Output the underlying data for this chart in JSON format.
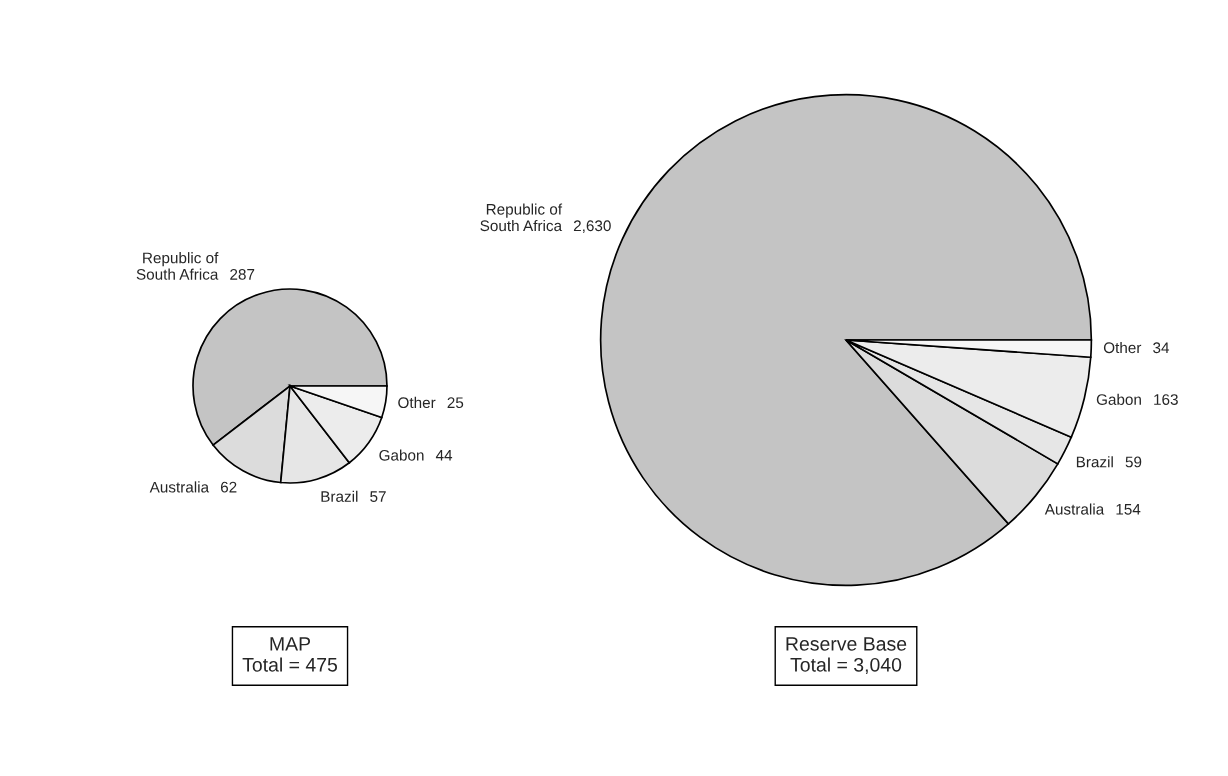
{
  "chart_data": [
    {
      "type": "pie",
      "title": "MAP",
      "subtitle": "Total = 475",
      "categories": [
        "Republic of\nSouth Africa",
        "Australia",
        "Brazil",
        "Gabon",
        "Other"
      ],
      "values": [
        287,
        62,
        57,
        44,
        25
      ],
      "value_labels": [
        "287",
        "62",
        "57",
        "44",
        "25"
      ],
      "colors": [
        "#c4c4c4",
        "#dcdcdc",
        "#e6e6e6",
        "#ececec",
        "#f6f6f6"
      ]
    },
    {
      "type": "pie",
      "title": "Reserve Base",
      "subtitle": "Total = 3,040",
      "categories": [
        "Republic of\nSouth Africa",
        "Australia",
        "Brazil",
        "Gabon",
        "Other"
      ],
      "values": [
        2630,
        154,
        59,
        163,
        34
      ],
      "value_labels": [
        "2,630",
        "154",
        "59",
        "163",
        "34"
      ],
      "colors": [
        "#c4c4c4",
        "#dcdcdc",
        "#e6e6e6",
        "#ececec",
        "#f6f6f6"
      ]
    }
  ]
}
